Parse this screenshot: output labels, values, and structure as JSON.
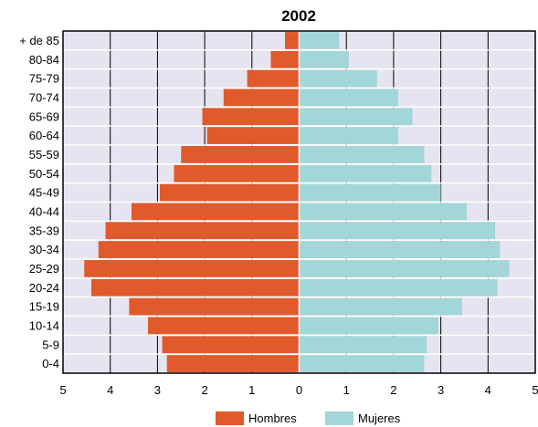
{
  "chart_data": {
    "type": "bar",
    "orientation": "horizontal",
    "layout": "population-pyramid",
    "title": "2002",
    "categories": [
      "0-4",
      "5-9",
      "10-14",
      "15-19",
      "20-24",
      "25-29",
      "30-34",
      "35-39",
      "40-44",
      "45-49",
      "50-54",
      "55-59",
      "60-64",
      "65-69",
      "70-74",
      "75-79",
      "80-84",
      "+ de 85"
    ],
    "series": [
      {
        "name": "Hombres",
        "color": "#e05a2b",
        "side": "left",
        "values": [
          2.8,
          2.9,
          3.2,
          3.6,
          4.4,
          4.55,
          4.25,
          4.1,
          3.55,
          2.95,
          2.65,
          2.5,
          1.95,
          2.05,
          1.6,
          1.1,
          0.6,
          0.3
        ]
      },
      {
        "name": "Mujeres",
        "color": "#a3d6d8",
        "side": "right",
        "values": [
          2.65,
          2.7,
          2.95,
          3.45,
          4.2,
          4.45,
          4.25,
          4.15,
          3.55,
          3.0,
          2.8,
          2.65,
          2.1,
          2.4,
          2.1,
          1.65,
          1.05,
          0.85
        ]
      }
    ],
    "x_ticks": [
      "5",
      "4",
      "3",
      "2",
      "1",
      "0",
      "1",
      "2",
      "3",
      "4",
      "5"
    ],
    "xlim": [
      -5,
      5
    ],
    "grid": true,
    "legend_position": "bottom-center",
    "plot_background": "#e6e4f0"
  }
}
